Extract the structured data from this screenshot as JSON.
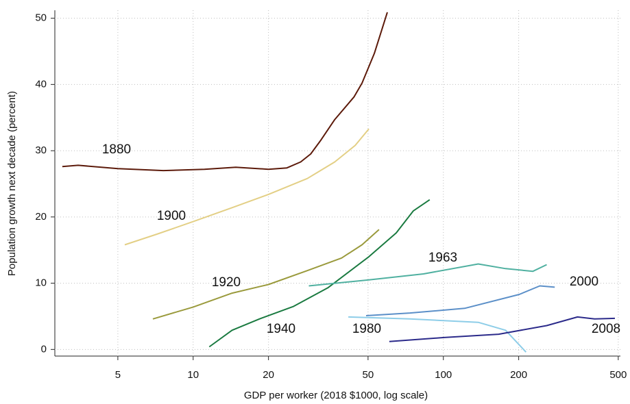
{
  "chart_data": {
    "type": "line",
    "x_label": "GDP per worker (2018 $1000, log scale)",
    "y_label": "Population growth next decade (percent)",
    "xlim": [
      2.8,
      510
    ],
    "ylim": [
      -1,
      51.2
    ],
    "x_log": true,
    "grid": true,
    "xticks": [
      5,
      10,
      20,
      50,
      100,
      200,
      500
    ],
    "yticks": [
      0,
      10,
      20,
      30,
      40,
      50
    ],
    "series": [
      {
        "name": "1880",
        "color": "#5c1a0a",
        "x": [
          3.0,
          3.47,
          5,
          7.6,
          11.1,
          14.8,
          20,
          23.7,
          26.9,
          29.5,
          32.4,
          36.8,
          43.9,
          47.3,
          53.0,
          59.7
        ],
        "values": [
          27.6,
          27.8,
          27.3,
          27.0,
          27.2,
          27.5,
          27.2,
          27.4,
          28.3,
          29.5,
          31.6,
          34.7,
          38.1,
          40.2,
          44.7,
          50.9
        ]
      },
      {
        "name": "1900",
        "color": "#e3cf85",
        "x": [
          5.33,
          7.16,
          10,
          14.3,
          20,
          28.6,
          36.8,
          44.4,
          50.4
        ],
        "values": [
          15.8,
          17.4,
          19.3,
          21.4,
          23.4,
          25.8,
          28.3,
          30.8,
          33.3
        ]
      },
      {
        "name": "1920",
        "color": "#9a9a3c",
        "x": [
          6.9,
          10,
          14.3,
          20,
          28.6,
          39.2,
          47.3,
          55.3
        ],
        "values": [
          4.6,
          6.4,
          8.5,
          9.8,
          11.9,
          13.8,
          15.8,
          18.1
        ]
      },
      {
        "name": "1940",
        "color": "#1a7a40",
        "x": [
          11.6,
          14.3,
          18.4,
          25.2,
          34.5,
          50.4,
          64.8,
          75.8,
          88.2
        ],
        "values": [
          0.4,
          2.9,
          4.6,
          6.5,
          9.3,
          14.0,
          17.6,
          20.9,
          22.6
        ]
      },
      {
        "name": "1963",
        "color": "#4fb0a0",
        "x": [
          29.0,
          50.4,
          83.3,
          137.8,
          177.3,
          228,
          258.8
        ],
        "values": [
          9.6,
          10.5,
          11.4,
          12.9,
          12.2,
          11.8,
          12.8
        ]
      },
      {
        "name": "1980",
        "color": "#8dcde8",
        "x": [
          41.7,
          73.5,
          137.8,
          177.3,
          214
        ],
        "values": [
          4.9,
          4.6,
          4.1,
          2.9,
          -0.4
        ]
      },
      {
        "name": "2000",
        "color": "#5b8fc8",
        "x": [
          49.1,
          73.5,
          121.6,
          201,
          243,
          278.6
        ],
        "values": [
          5.1,
          5.5,
          6.2,
          8.3,
          9.6,
          9.4
        ]
      },
      {
        "name": "2008",
        "color": "#2b2a8a",
        "x": [
          60.8,
          100.7,
          166.3,
          258.8,
          343.6,
          402,
          485
        ],
        "values": [
          1.2,
          1.8,
          2.3,
          3.6,
          4.9,
          4.6,
          4.7
        ]
      }
    ]
  }
}
